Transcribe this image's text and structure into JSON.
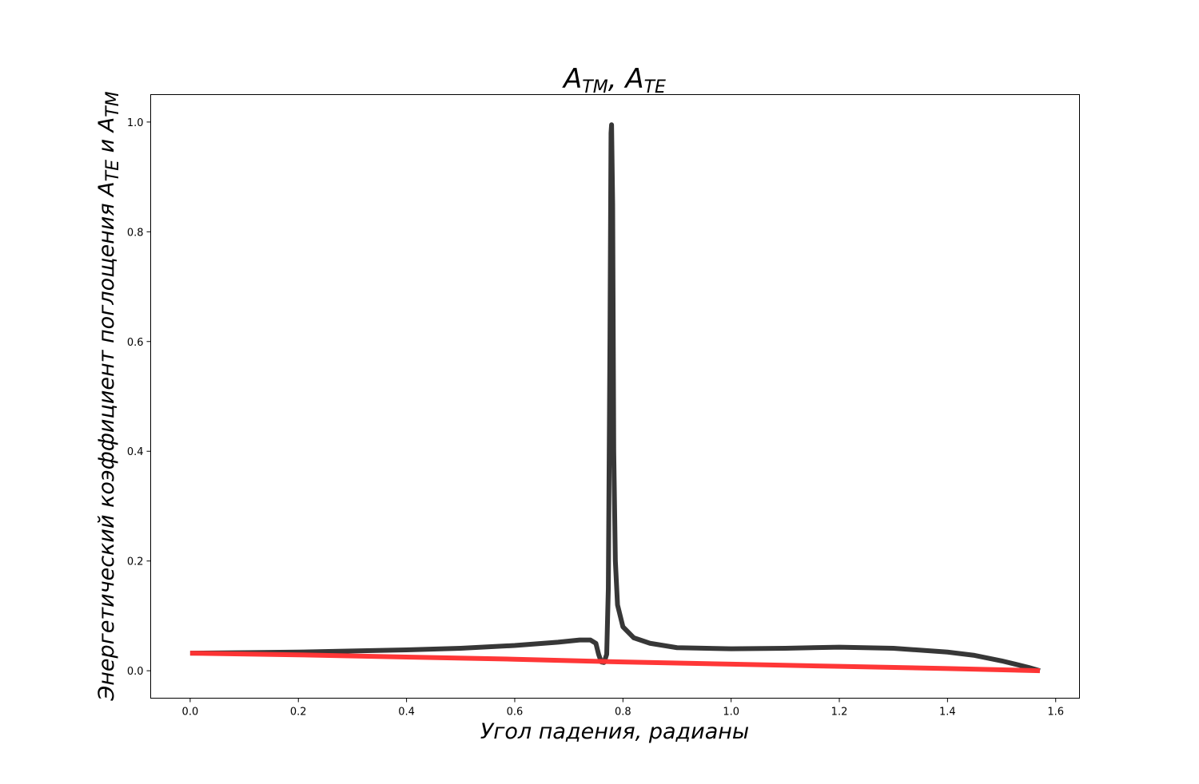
{
  "chart_data": {
    "type": "line",
    "title": {
      "base1": "A",
      "sub1": "TM",
      "sep": ", ",
      "base2": "A",
      "sub2": "TE"
    },
    "xlabel": "Угол падения, радианы",
    "ylabel": {
      "prefix": "Энергетический коэффициент поглощения ",
      "base1": "A",
      "sub1": "TE",
      "mid": " и ",
      "base2": "A",
      "sub2": "TM"
    },
    "xlim": [
      -0.073,
      1.644
    ],
    "ylim": [
      -0.05,
      1.05
    ],
    "x_ticks": [
      "0.0",
      "0.2",
      "0.4",
      "0.6",
      "0.8",
      "1.0",
      "1.2",
      "1.4",
      "1.6"
    ],
    "y_ticks": [
      "0.0",
      "0.2",
      "0.4",
      "0.6",
      "0.8",
      "1.0"
    ],
    "grid": false,
    "series": [
      {
        "color": "#333333",
        "points": [
          [
            0.0,
            0.032
          ],
          [
            0.1,
            0.033
          ],
          [
            0.2,
            0.034
          ],
          [
            0.3,
            0.036
          ],
          [
            0.4,
            0.038
          ],
          [
            0.5,
            0.041
          ],
          [
            0.6,
            0.046
          ],
          [
            0.68,
            0.052
          ],
          [
            0.72,
            0.056
          ],
          [
            0.74,
            0.056
          ],
          [
            0.75,
            0.05
          ],
          [
            0.755,
            0.03
          ],
          [
            0.76,
            0.016
          ],
          [
            0.765,
            0.015
          ],
          [
            0.77,
            0.03
          ],
          [
            0.773,
            0.15
          ],
          [
            0.776,
            0.6
          ],
          [
            0.778,
            0.98
          ],
          [
            0.779,
            0.995
          ],
          [
            0.781,
            0.85
          ],
          [
            0.783,
            0.4
          ],
          [
            0.786,
            0.2
          ],
          [
            0.79,
            0.12
          ],
          [
            0.8,
            0.08
          ],
          [
            0.82,
            0.06
          ],
          [
            0.85,
            0.05
          ],
          [
            0.9,
            0.042
          ],
          [
            1.0,
            0.04
          ],
          [
            1.1,
            0.041
          ],
          [
            1.2,
            0.043
          ],
          [
            1.3,
            0.041
          ],
          [
            1.4,
            0.034
          ],
          [
            1.45,
            0.028
          ],
          [
            1.5,
            0.018
          ],
          [
            1.55,
            0.006
          ],
          [
            1.5708,
            0.0
          ]
        ]
      },
      {
        "color": "#ff3333",
        "points": [
          [
            0.0,
            0.032
          ],
          [
            0.2,
            0.029
          ],
          [
            0.4,
            0.025
          ],
          [
            0.6,
            0.021
          ],
          [
            0.8,
            0.016
          ],
          [
            1.0,
            0.012
          ],
          [
            1.2,
            0.008
          ],
          [
            1.4,
            0.004
          ],
          [
            1.5708,
            0.0
          ]
        ]
      }
    ]
  }
}
